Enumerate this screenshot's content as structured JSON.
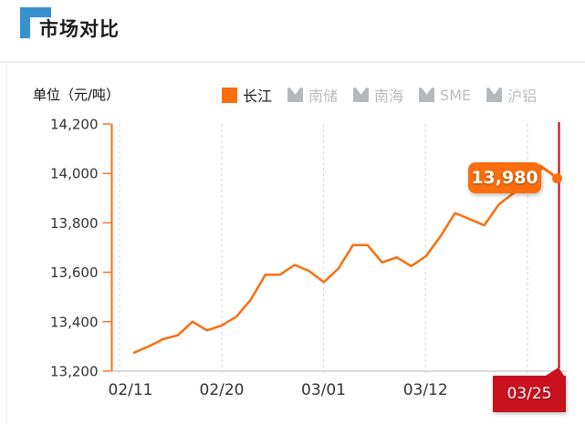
{
  "header": {
    "title": "市场对比"
  },
  "unit_label": "单位（元/吨）",
  "legend": {
    "active": {
      "label": "长江"
    },
    "inactive": [
      {
        "label": "南储"
      },
      {
        "label": "南海"
      },
      {
        "label": "SME"
      },
      {
        "label": "沪铝"
      }
    ]
  },
  "tooltip": {
    "value": "13,980"
  },
  "axis_pointer_label": "03/25",
  "colors": {
    "accent_orange": "#fa6e0d",
    "accent_red": "#c9111e",
    "accent_blue": "#3691ce",
    "inactive_gray": "#b9bdbf",
    "axis_text": "#333333",
    "gridline": "#dadada",
    "x_axis_line": "#cfcfcf"
  },
  "chart_data": {
    "type": "line",
    "title": "市场对比",
    "ylabel": "单位（元/吨）",
    "unit": "元/吨",
    "legend_position": "top",
    "grid": "dashed-vertical",
    "ylim": [
      13200,
      14200
    ],
    "y_ticks": [
      13200,
      13400,
      13600,
      13800,
      14000,
      14200
    ],
    "x_tick_labels": [
      "02/11",
      "02/20",
      "03/01",
      "03/12"
    ],
    "highlighted_x_label": "03/25",
    "series": [
      {
        "name": "长江",
        "color": "#fa6e0d",
        "values": [
          13275,
          13300,
          13330,
          13345,
          13400,
          13365,
          13385,
          13420,
          13490,
          13590,
          13590,
          13630,
          13605,
          13560,
          13615,
          13710,
          13710,
          13640,
          13660,
          13625,
          13665,
          13745,
          13840,
          13815,
          13790,
          13875,
          13920,
          13955,
          14025,
          13980
        ]
      }
    ],
    "last_point": {
      "date": "03/25",
      "value": 13980,
      "label": "13,980"
    }
  }
}
